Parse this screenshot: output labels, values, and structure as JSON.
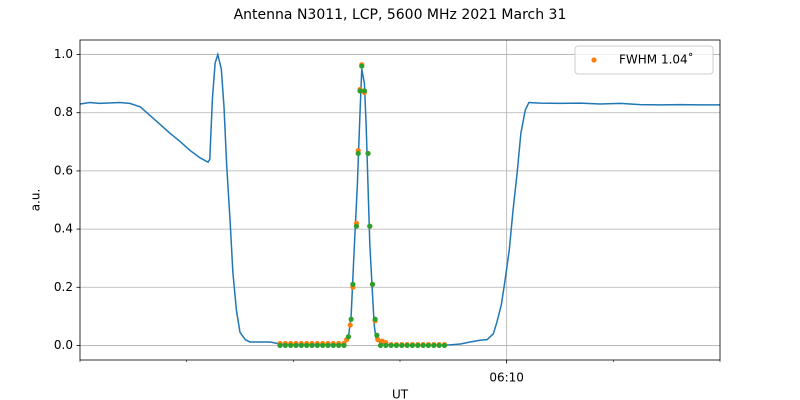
{
  "chart_data": {
    "type": "line",
    "title": "Antenna N3011, LCP, 5600 MHz 2021 March 31",
    "x_label": "UT",
    "y_label": "a.u.",
    "xlim": [
      21720,
      22440
    ],
    "xticks": [
      {
        "value": 22200,
        "label": "06:10"
      }
    ],
    "xminorticks": [
      21720,
      21840,
      21960,
      22080,
      22200,
      22320,
      22440
    ],
    "ylim": [
      -0.05,
      1.05
    ],
    "yticks": [
      {
        "value": 0,
        "label": "0.0"
      },
      0.2,
      0.4,
      0.6,
      0.8,
      {
        "value": 1,
        "label": "1.0"
      }
    ],
    "grid": true,
    "legend": "upper right",
    "series": [
      {
        "style": "line",
        "color": "#1f77b4",
        "x": [
          21720,
          21731,
          21742,
          21765,
          21776,
          21788,
          21799,
          21810,
          21821,
          21833,
          21844,
          21855,
          21864,
          21866,
          21869,
          21872,
          21875,
          21879,
          21882,
          21885,
          21889,
          21892,
          21896,
          21900,
          21906,
          21911,
          21923,
          21934,
          21945,
          21956,
          21968,
          21990,
          22013,
          22018,
          22022,
          22025,
          22028,
          22032,
          22035,
          22037,
          22040,
          22042,
          22044,
          22046,
          22049,
          22051,
          22053,
          22058,
          22069,
          22080,
          22103,
          22125,
          22136,
          22148,
          22159,
          22170,
          22178,
          22185,
          22189,
          22194,
          22198,
          22203,
          22207,
          22212,
          22216,
          22221,
          22225,
          22238,
          22260,
          22283,
          22305,
          22328,
          22350,
          22373,
          22395,
          22418,
          22440
        ],
        "values": [
          0.83,
          0.835,
          0.832,
          0.835,
          0.832,
          0.82,
          0.79,
          0.76,
          0.73,
          0.7,
          0.67,
          0.645,
          0.63,
          0.64,
          0.85,
          0.97,
          1.0,
          0.95,
          0.82,
          0.62,
          0.42,
          0.25,
          0.12,
          0.045,
          0.02,
          0.012,
          0.012,
          0.012,
          0.005,
          0.003,
          0.003,
          0.003,
          0.003,
          0.01,
          0.03,
          0.1,
          0.3,
          0.55,
          0.8,
          0.95,
          0.9,
          0.75,
          0.55,
          0.35,
          0.18,
          0.07,
          0.025,
          0.008,
          0.002,
          0.001,
          0.001,
          0.001,
          0.002,
          0.005,
          0.012,
          0.018,
          0.02,
          0.04,
          0.08,
          0.14,
          0.22,
          0.33,
          0.46,
          0.6,
          0.73,
          0.81,
          0.835,
          0.833,
          0.832,
          0.833,
          0.83,
          0.832,
          0.828,
          0.827,
          0.828,
          0.827,
          0.827
        ]
      },
      {
        "style": "points",
        "name": "FWHM 1.04˚",
        "color": "#ff7f0e",
        "x": [
          21945,
          21951,
          21957,
          21963,
          21969,
          21975,
          21981,
          21987,
          21993,
          21999,
          22005,
          22011,
          22017,
          22020,
          22024,
          22027,
          22031,
          22033,
          22035,
          22037,
          22040,
          22044,
          22046,
          22049,
          22052,
          22055,
          22060,
          22064,
          22070,
          22076,
          22082,
          22088,
          22094,
          22100,
          22106,
          22112,
          22118,
          22124,
          22130
        ],
        "values": [
          0.007,
          0.007,
          0.007,
          0.007,
          0.007,
          0.007,
          0.007,
          0.007,
          0.007,
          0.007,
          0.007,
          0.007,
          0.007,
          0.02,
          0.07,
          0.2,
          0.42,
          0.67,
          0.88,
          0.965,
          0.87,
          0.66,
          0.41,
          0.21,
          0.085,
          0.02,
          0.015,
          0.01,
          0.003,
          0.003,
          0.003,
          0.003,
          0.003,
          0.003,
          0.003,
          0.003,
          0.003,
          0.003,
          0.003
        ]
      },
      {
        "style": "points",
        "color": "#2ca02c",
        "x": [
          21945,
          21951,
          21957,
          21963,
          21969,
          21975,
          21981,
          21987,
          21993,
          21999,
          22005,
          22011,
          22017,
          22022,
          22025,
          22027,
          22031,
          22033,
          22035,
          22037,
          22040,
          22044,
          22046,
          22049,
          22052,
          22054,
          22058,
          22064,
          22070,
          22076,
          22082,
          22088,
          22094,
          22100,
          22106,
          22112,
          22118,
          22124,
          22130
        ],
        "values": [
          0,
          0,
          0,
          0,
          0,
          0,
          0,
          0,
          0,
          0,
          0,
          0,
          0,
          0.03,
          0.09,
          0.21,
          0.41,
          0.66,
          0.875,
          0.96,
          0.875,
          0.66,
          0.41,
          0.21,
          0.09,
          0.035,
          0,
          0,
          0,
          0,
          0,
          0,
          0,
          0,
          0,
          0,
          0,
          0,
          0
        ]
      }
    ]
  }
}
